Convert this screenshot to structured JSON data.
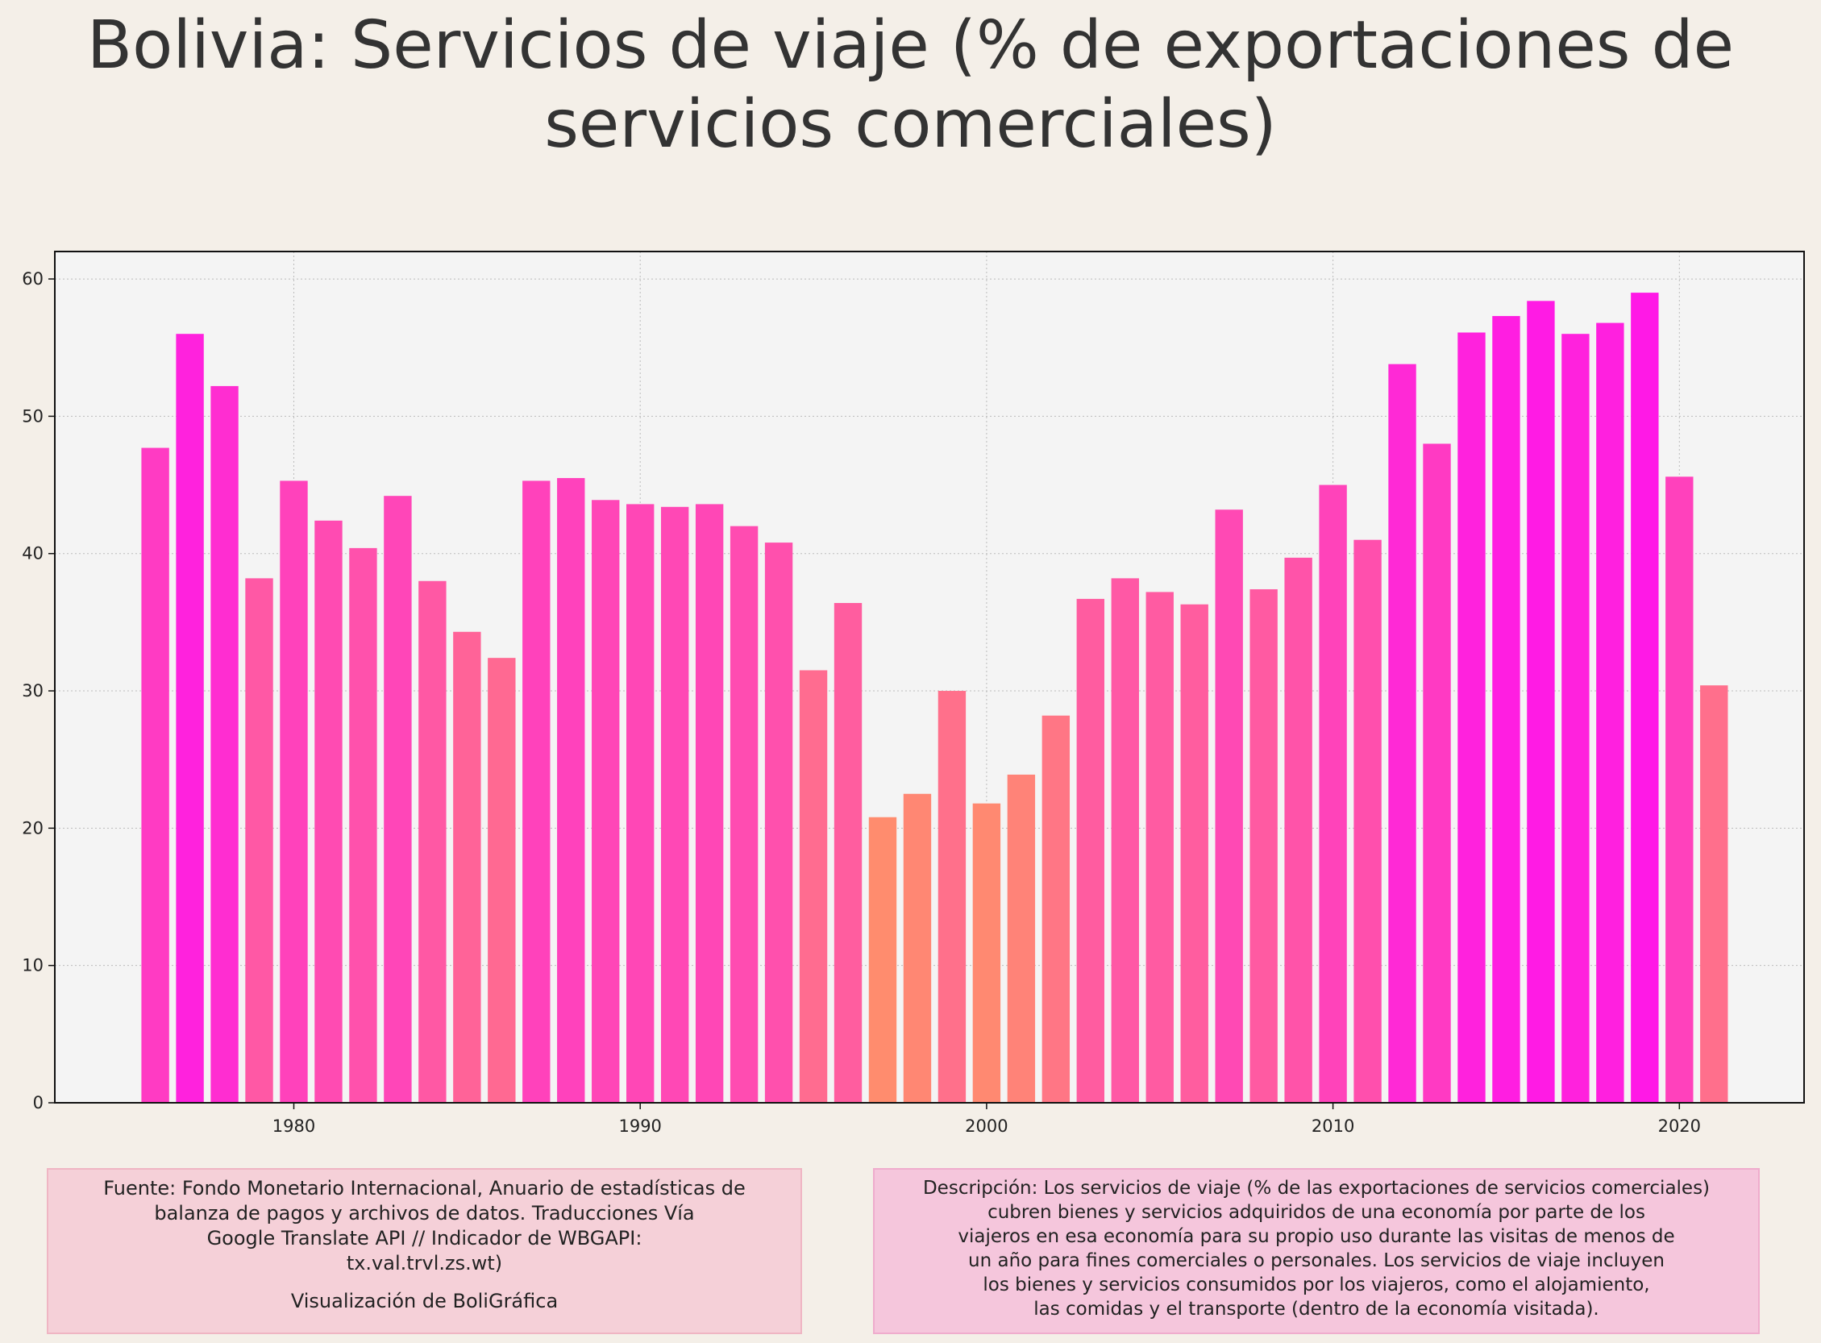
{
  "header": {
    "title_line1": "Bolivia:  Servicios de viaje (% de exportaciones de",
    "title_line2": "servicios comerciales)"
  },
  "footer": {
    "source_lines": [
      "Fuente: Fondo Monetario Internacional, Anuario de estadísticas de",
      "balanza de pagos y archivos de datos. Traducciones Vía",
      "Google Translate API // Indicador de WBGAPI:",
      "tx.val.trvl.zs.wt)"
    ],
    "credit": "Visualización de BoliGráfica",
    "description_lines": [
      "Descripción: Los servicios de viaje (% de las exportaciones de servicios comerciales)",
      "cubren bienes y servicios adquiridos de una economía por parte de los",
      "viajeros en esa economía para su propio uso durante las visitas de menos de",
      "un año para fines comerciales o personales. Los servicios de viaje incluyen",
      "los bienes y servicios consumidos por los viajeros, como el alojamiento,",
      "las comidas y el transporte (dentro de la economía visitada)."
    ]
  },
  "chart_data": {
    "type": "bar",
    "title": "Bolivia:  Servicios de viaje (% de exportaciones de servicios comerciales)",
    "xlabel": "",
    "ylabel": "",
    "x": [
      1976,
      1977,
      1978,
      1979,
      1980,
      1981,
      1982,
      1983,
      1984,
      1985,
      1986,
      1987,
      1988,
      1989,
      1990,
      1991,
      1992,
      1993,
      1994,
      1995,
      1996,
      1997,
      1998,
      1999,
      2000,
      2001,
      2002,
      2003,
      2004,
      2005,
      2006,
      2007,
      2008,
      2009,
      2010,
      2011,
      2012,
      2013,
      2014,
      2015,
      2016,
      2017,
      2018,
      2019,
      2020,
      2021
    ],
    "values": [
      47.7,
      56.0,
      52.2,
      38.2,
      45.3,
      42.4,
      40.4,
      44.2,
      38.0,
      34.3,
      32.4,
      45.3,
      45.5,
      43.9,
      43.6,
      43.4,
      43.6,
      42.0,
      40.8,
      31.5,
      36.4,
      20.8,
      22.5,
      30.0,
      21.8,
      23.9,
      28.2,
      36.7,
      38.2,
      37.2,
      36.3,
      43.2,
      37.4,
      39.7,
      45.0,
      41.0,
      53.8,
      48.0,
      56.1,
      57.3,
      58.4,
      56.0,
      56.8,
      59.0,
      45.6,
      30.4
    ],
    "xlim": [
      1973.1,
      2023.6
    ],
    "ylim": [
      0,
      62
    ],
    "x_ticks": [
      1980,
      1990,
      2000,
      2010,
      2020
    ],
    "y_ticks": [
      0,
      10,
      20,
      30,
      40,
      50,
      60
    ],
    "grid": true,
    "legend": "none",
    "colors": {
      "low": "#ff8c6e",
      "high": "#ff19e6",
      "plot_background": "#f4f4f4",
      "grid": "#bbbbbb"
    }
  }
}
